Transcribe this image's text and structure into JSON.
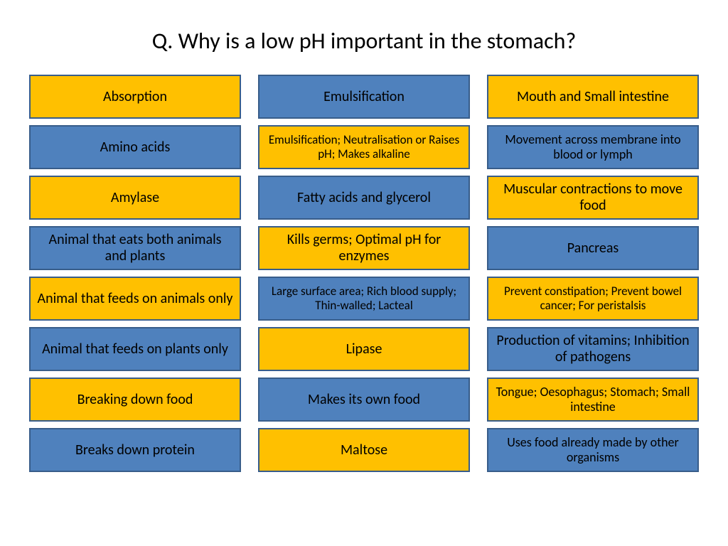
{
  "title": "Q. Why is a low pH important in the stomach?",
  "colors": {
    "yellow_fill": "#ffc000",
    "blue_fill": "#4f81bd",
    "border": "#385d8a",
    "text": "#000000",
    "background": "#ffffff"
  },
  "columns": [
    [
      {
        "label": "Absorption",
        "style": "yellow",
        "size": ""
      },
      {
        "label": "Amino acids",
        "style": "blue",
        "size": ""
      },
      {
        "label": "Amylase",
        "style": "yellow",
        "size": ""
      },
      {
        "label": "Animal that eats both animals and plants",
        "style": "blue",
        "size": ""
      },
      {
        "label": "Animal that feeds on animals only",
        "style": "yellow",
        "size": ""
      },
      {
        "label": "Animal that feeds on plants only",
        "style": "blue",
        "size": ""
      },
      {
        "label": "Breaking down food",
        "style": "yellow",
        "size": ""
      },
      {
        "label": "Breaks down protein",
        "style": "blue",
        "size": ""
      }
    ],
    [
      {
        "label": "Emulsification",
        "style": "blue",
        "size": ""
      },
      {
        "label": "Emulsification; Neutralisation or Raises pH; Makes alkaline",
        "style": "yellow",
        "size": "smaller"
      },
      {
        "label": "Fatty acids and glycerol",
        "style": "blue",
        "size": ""
      },
      {
        "label": "Kills germs; Optimal pH for enzymes",
        "style": "yellow",
        "size": ""
      },
      {
        "label": "Large surface area; Rich blood supply; Thin-walled; Lacteal",
        "style": "blue",
        "size": "smaller"
      },
      {
        "label": "Lipase",
        "style": "yellow",
        "size": ""
      },
      {
        "label": "Makes its own food",
        "style": "blue",
        "size": ""
      },
      {
        "label": "Maltose",
        "style": "yellow",
        "size": ""
      }
    ],
    [
      {
        "label": "Mouth and Small intestine",
        "style": "yellow",
        "size": ""
      },
      {
        "label": "Movement across membrane into blood or lymph",
        "style": "blue",
        "size": "small"
      },
      {
        "label": "Muscular contractions to move food",
        "style": "yellow",
        "size": ""
      },
      {
        "label": "Pancreas",
        "style": "blue",
        "size": ""
      },
      {
        "label": "Prevent constipation; Prevent bowel cancer; For peristalsis",
        "style": "yellow",
        "size": "smaller"
      },
      {
        "label": "Production of vitamins; Inhibition of pathogens",
        "style": "blue",
        "size": ""
      },
      {
        "label": "Tongue; Oesophagus; Stomach; Small intestine",
        "style": "yellow",
        "size": "small"
      },
      {
        "label": "Uses food already made by other organisms",
        "style": "blue",
        "size": "small"
      }
    ]
  ]
}
